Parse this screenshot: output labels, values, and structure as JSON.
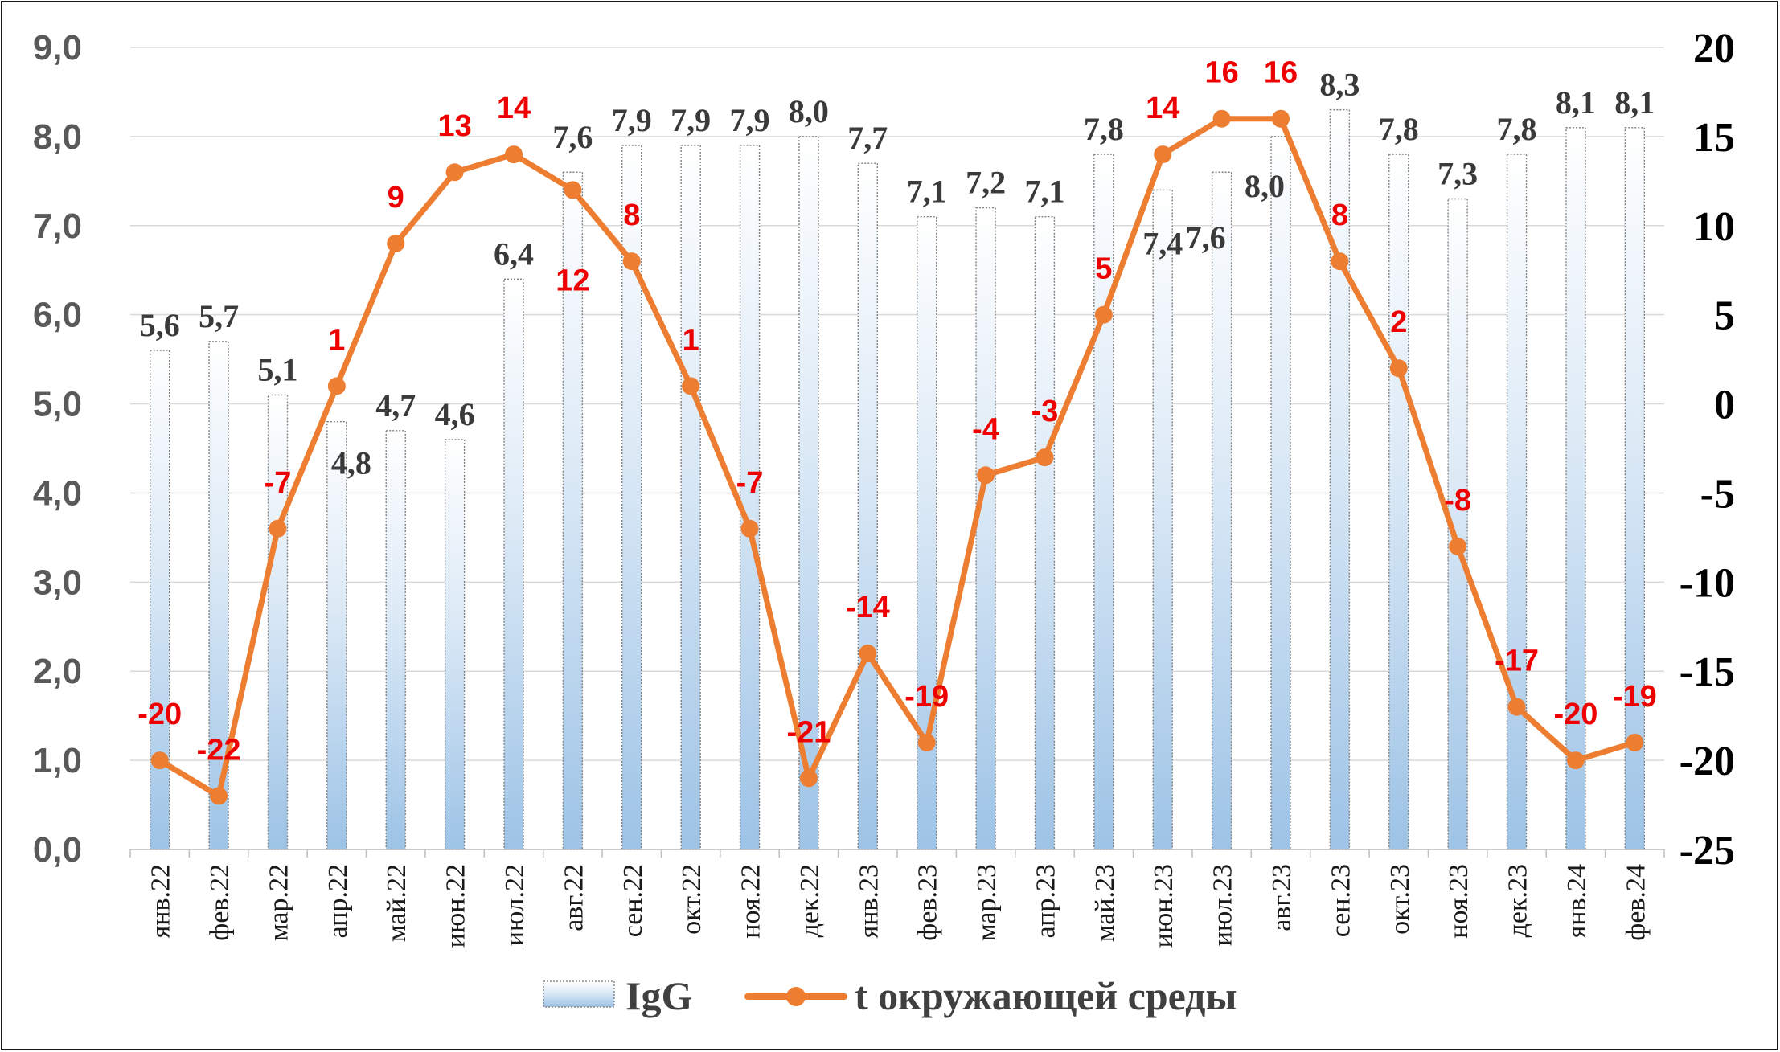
{
  "chart_data": {
    "type": "bar+line",
    "categories": [
      "янв.22",
      "фев.22",
      "мар.22",
      "апр.22",
      "май.22",
      "июн.22",
      "июл.22",
      "авг.22",
      "сен.22",
      "окт.22",
      "ноя.22",
      "дек.22",
      "янв.23",
      "фев.23",
      "мар.23",
      "апр.23",
      "май.23",
      "июн.23",
      "июл.23",
      "авг.23",
      "сен.23",
      "окт.23",
      "ноя.23",
      "дек.23",
      "янв.24",
      "фев.24"
    ],
    "series": [
      {
        "name": "IgG",
        "type": "bar",
        "axis": "left",
        "values": [
          5.6,
          5.7,
          5.1,
          4.8,
          4.7,
          4.6,
          6.4,
          7.6,
          7.9,
          7.9,
          7.9,
          8.0,
          7.7,
          7.1,
          7.2,
          7.1,
          7.8,
          7.4,
          7.6,
          8.0,
          8.3,
          7.8,
          7.3,
          7.8,
          8.1,
          8.1
        ],
        "labels": [
          "5,6",
          "5,7",
          "5,1",
          "4,8",
          "4,7",
          "4,6",
          "6,4",
          "7,6",
          "7,9",
          "7,9",
          "7,9",
          "8,0",
          "7,7",
          "7,1",
          "7,2",
          "7,1",
          "7,8",
          "7,4",
          "7,6",
          "8,0",
          "8,3",
          "7,8",
          "7,3",
          "7,8",
          "8,1",
          "8,1"
        ],
        "color": "#9dc3e6"
      },
      {
        "name": "t окружающей среды",
        "type": "line",
        "axis": "right",
        "values": [
          -20,
          -22,
          -7,
          1,
          9,
          13,
          14,
          12,
          8,
          1,
          -7,
          -21,
          -14,
          -19,
          -4,
          -3,
          5,
          14,
          16,
          16,
          8,
          2,
          -8,
          -17,
          -20,
          -19
        ],
        "labels": [
          "-20",
          "-22",
          "-7",
          "1",
          "9",
          "13",
          "14",
          "12",
          "8",
          "1",
          "-7",
          "-21",
          "-14",
          "-19",
          "-4",
          "-3",
          "5",
          "14",
          "16",
          "16",
          "8",
          "2",
          "-8",
          "-17",
          "-20",
          "-19"
        ],
        "color": "#ed7d31",
        "label_color": "#ee0000"
      }
    ],
    "y_left": {
      "ylim": [
        0,
        9
      ],
      "ticks": [
        "0,0",
        "1,0",
        "2,0",
        "3,0",
        "4,0",
        "5,0",
        "6,0",
        "7,0",
        "8,0",
        "9,0"
      ]
    },
    "y_right": {
      "ylim": [
        -25,
        20
      ],
      "ticks": [
        "-25",
        "-20",
        "-15",
        "-10",
        "-5",
        "0",
        "5",
        "10",
        "15",
        "20"
      ]
    },
    "grid": true,
    "legend": {
      "placement": "bottom",
      "entries": [
        "IgG",
        "t окружающей среды"
      ]
    }
  }
}
